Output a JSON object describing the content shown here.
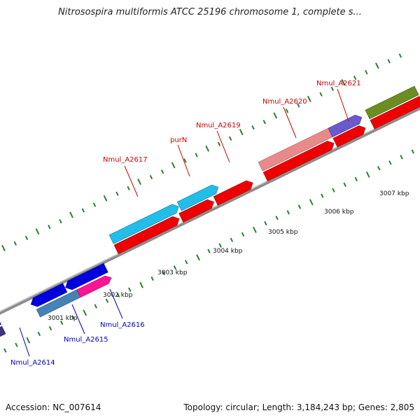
{
  "header": {
    "title": "Nitrosospira multiformis ATCC 25196 chromosome 1, complete s..."
  },
  "footer": {
    "accession": "Accession: NC_007614",
    "stats": "Topology: circular; Length: 3,184,243 bp; Genes: 2,805"
  },
  "scale_labels": [
    "3001 kbp",
    "3002 kbp",
    "3003 kbp",
    "3004 kbp",
    "3005 kbp",
    "3006 kbp",
    "3007 kbp"
  ],
  "gene_labels": [
    {
      "text": "Nmul_A2614",
      "color": "#0000bb"
    },
    {
      "text": "Nmul_A2615",
      "color": "#0000bb"
    },
    {
      "text": "Nmul_A2616",
      "color": "#0000bb"
    },
    {
      "text": "Nmul_A2617",
      "color": "#cc0000"
    },
    {
      "text": "purN",
      "color": "#cc0000"
    },
    {
      "text": "Nmul_A2619",
      "color": "#cc0000"
    },
    {
      "text": "Nmul_A2620",
      "color": "#cc0000"
    },
    {
      "text": "Nmul_A2621",
      "color": "#cc0000"
    }
  ],
  "colors": {
    "backbone": "#8c8c8c",
    "tick": "#2e7d32",
    "forward_strand": "#ee0000",
    "reverse_strand": "#0000dd",
    "pseudo_pink": "#e88a8a",
    "cyan_feature": "#22bde8",
    "purple_feature": "#6a5acd",
    "steelblue_feature": "#4682b4",
    "magenta_feature": "#ff1493",
    "dark_slate_feature": "#3d3580",
    "olive_feature": "#6b8e23"
  }
}
